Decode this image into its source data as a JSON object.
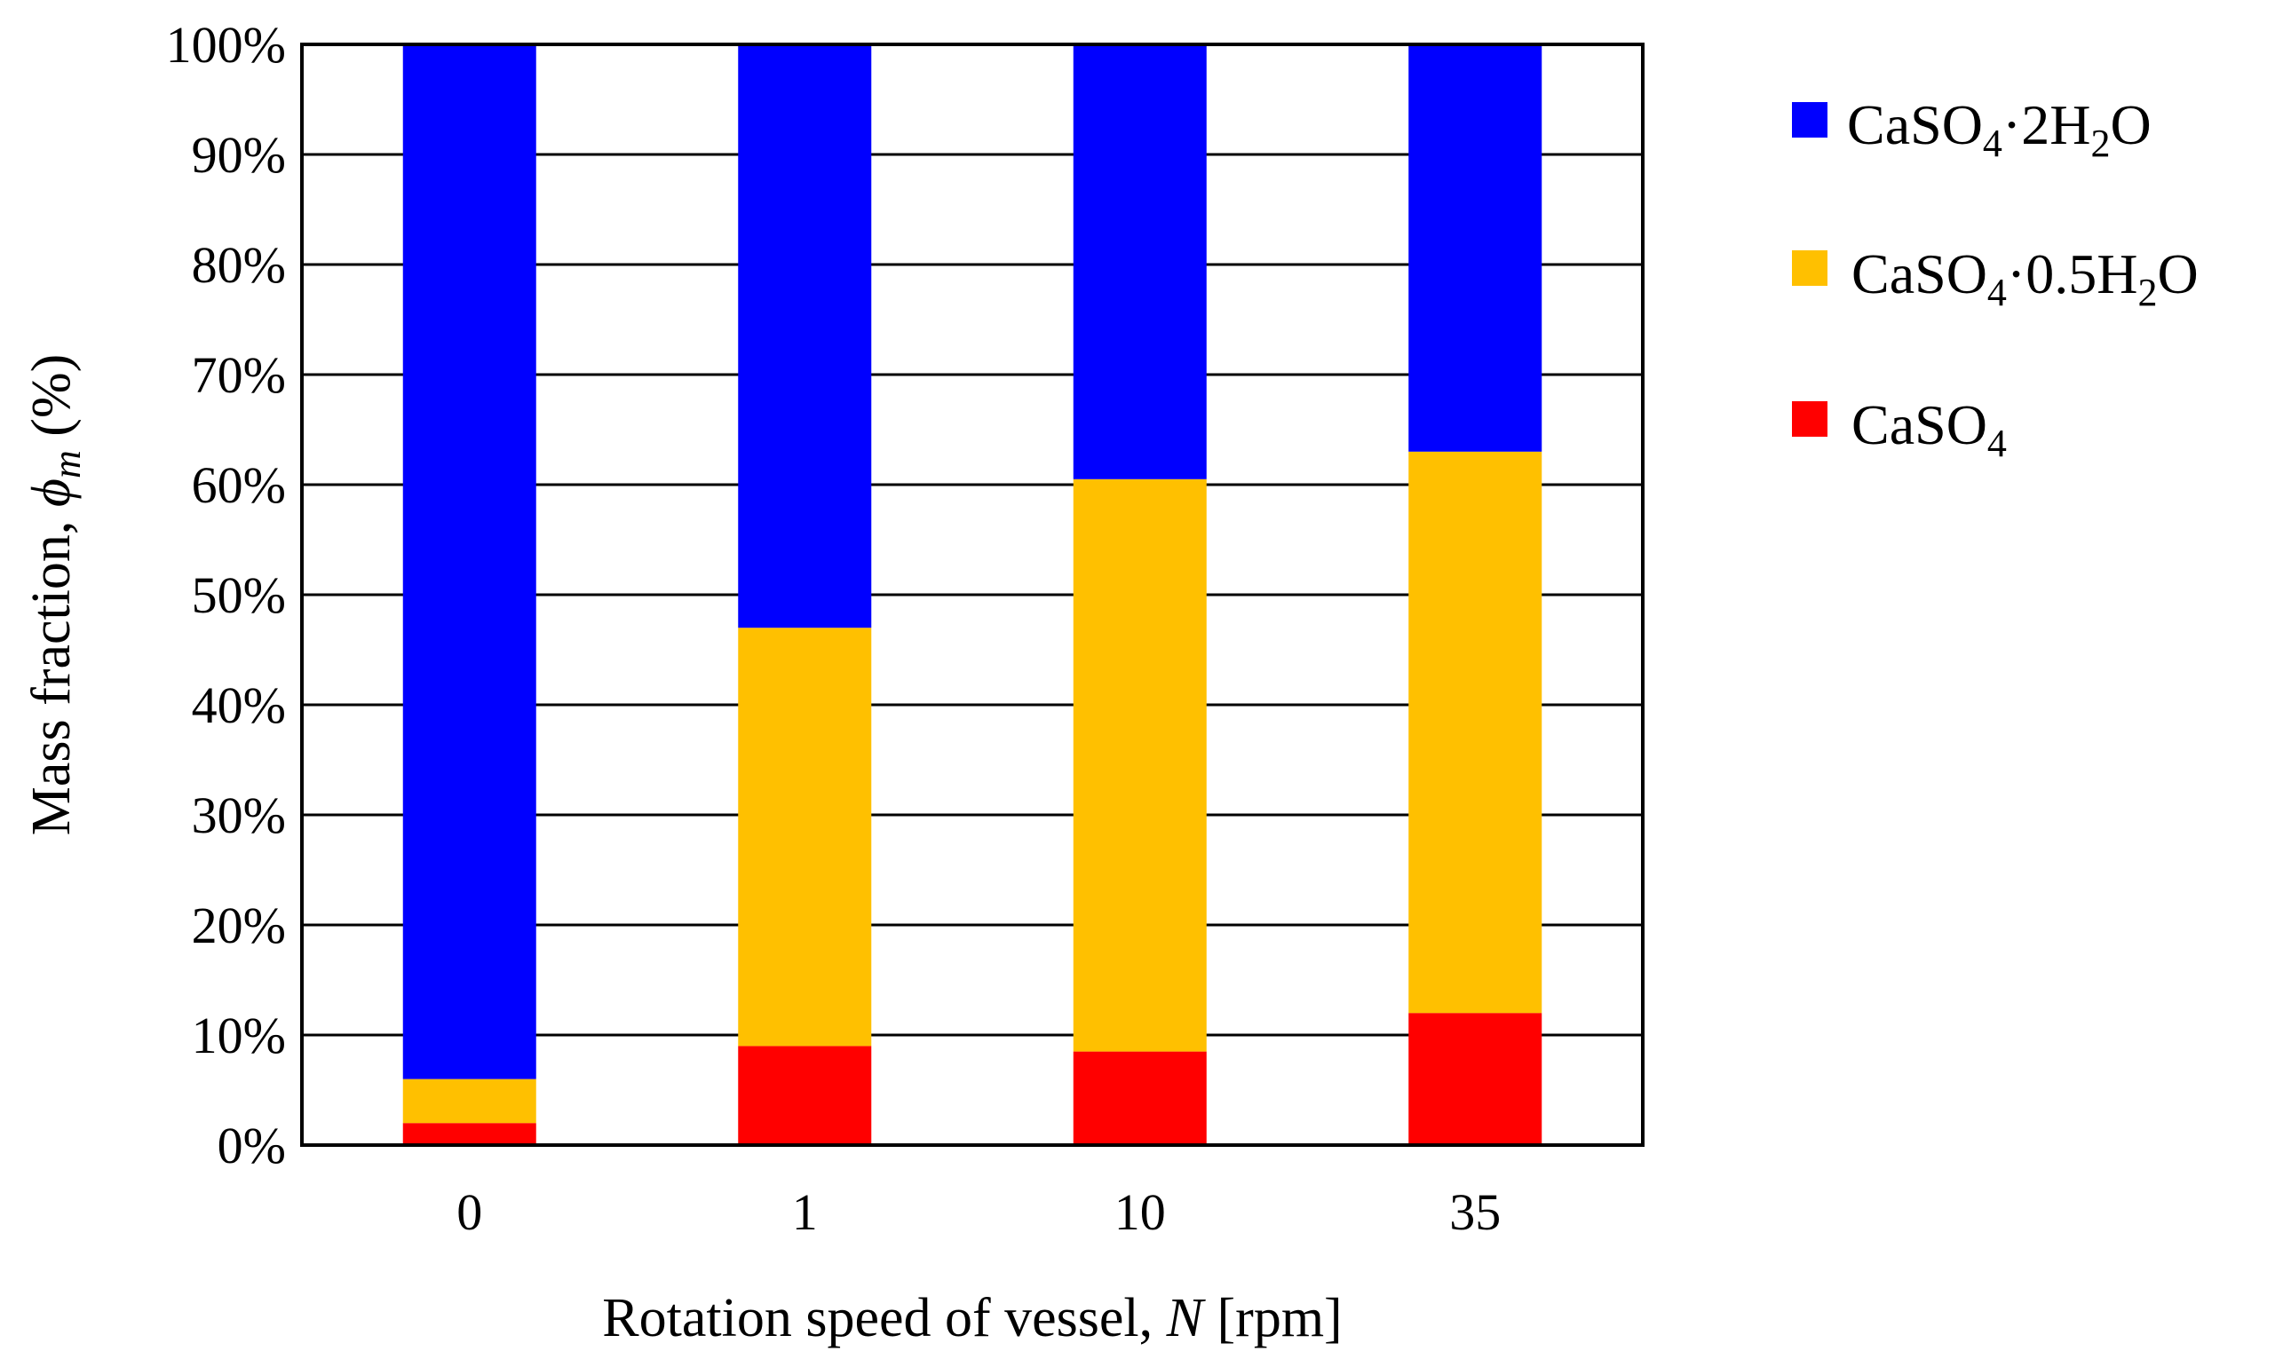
{
  "chart_data": {
    "type": "bar",
    "stacked": true,
    "categories": [
      "0",
      "1",
      "10",
      "35"
    ],
    "series": [
      {
        "name": "CaSO4",
        "label": "CaSO",
        "sub": "4",
        "color": "#ff0000",
        "values": [
          2,
          9,
          8.5,
          12
        ]
      },
      {
        "name": "CaSO4·0.5H2O",
        "label": "CaSO",
        "sub": "4",
        "mid": "·0.5H",
        "sub2": "2",
        "tail": "O",
        "color": "#ffc000",
        "values": [
          4,
          38,
          52,
          51
        ]
      },
      {
        "name": "CaSO4·2H2O",
        "label": "CaSO",
        "sub": "4",
        "mid": "·2H",
        "sub2": "2",
        "tail": "O",
        "color": "#0000ff",
        "values": [
          94,
          53,
          39.5,
          37
        ]
      }
    ],
    "ylim": [
      0,
      100
    ],
    "yticks": [
      "0%",
      "10%",
      "20%",
      "30%",
      "40%",
      "50%",
      "60%",
      "70%",
      "80%",
      "90%",
      "100%"
    ],
    "xlabel": {
      "pre": "Rotation speed of vessel, ",
      "var": "N",
      "post": " [rpm]"
    },
    "ylabel": {
      "pre": "Mass fraction, ",
      "var": "ϕ",
      "sub": "m",
      "post": " (%)"
    },
    "grid": true,
    "legend_position": "right"
  }
}
